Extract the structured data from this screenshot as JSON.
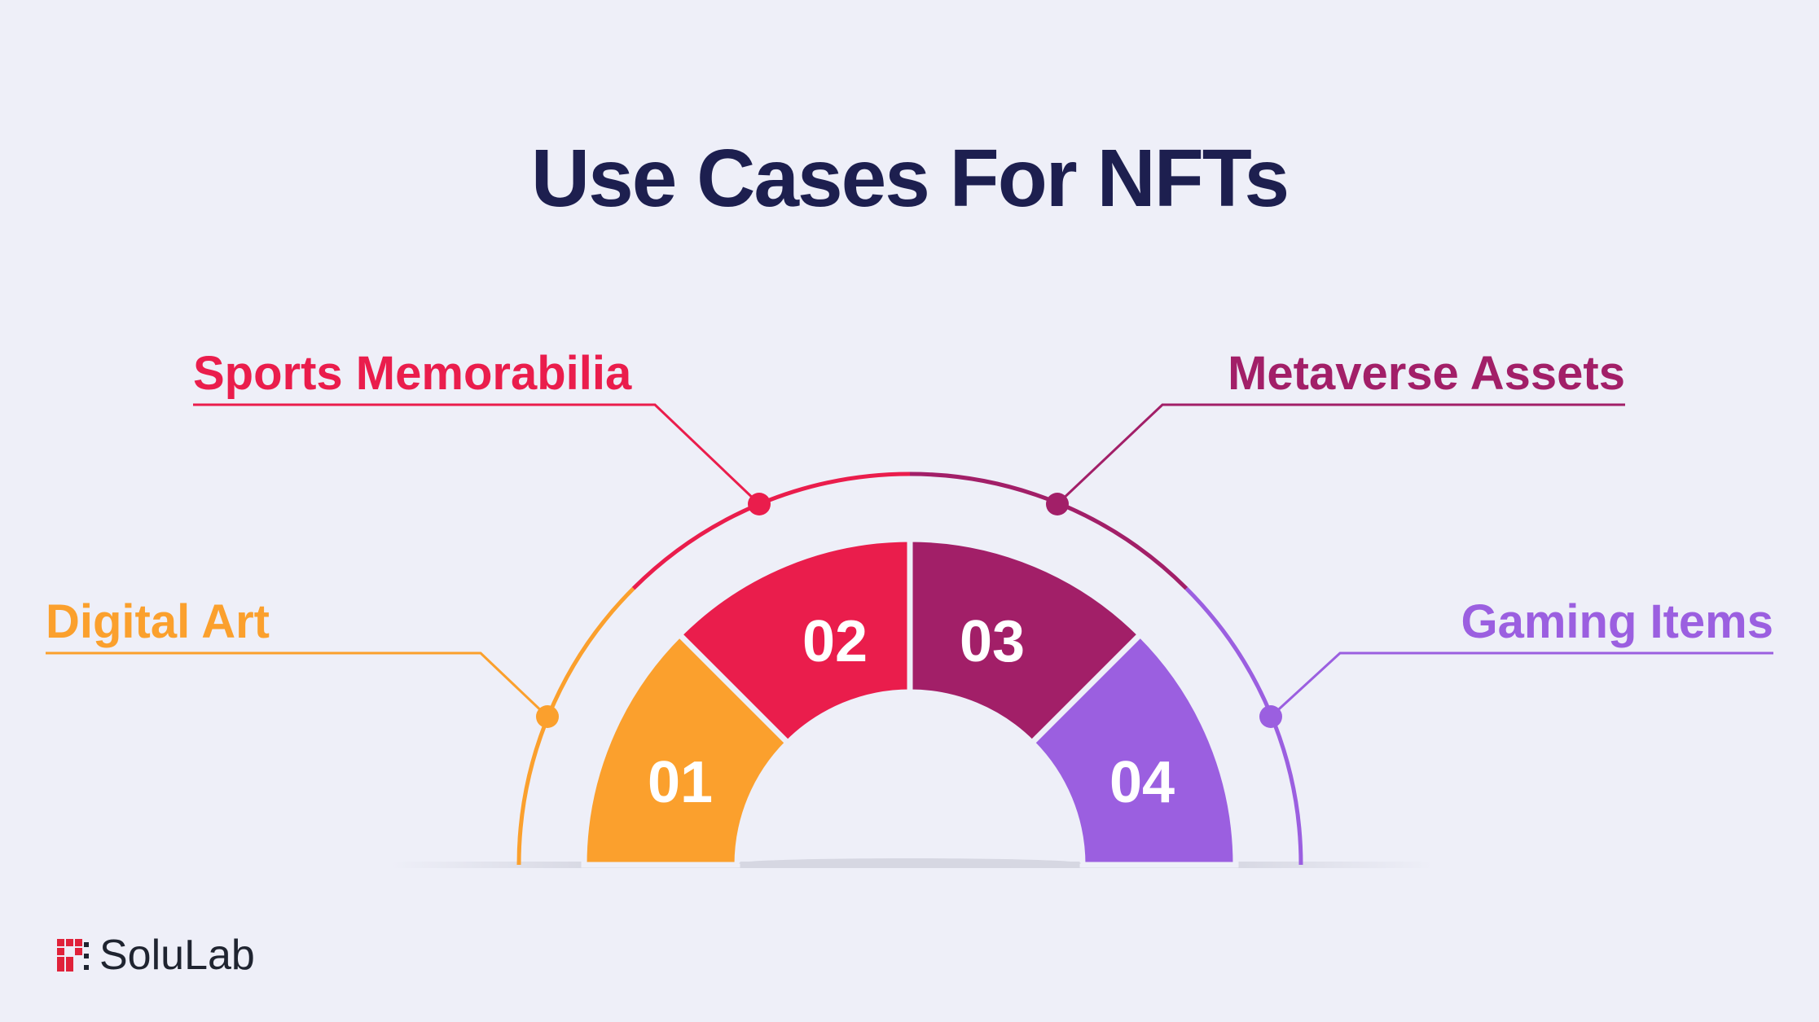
{
  "title": "Use Cases For NFTs",
  "segments": [
    {
      "number": "01",
      "label": "Digital Art",
      "color": "#fba02d"
    },
    {
      "number": "02",
      "label": "Sports Memorabilia",
      "color": "#ea1d4c"
    },
    {
      "number": "03",
      "label": "Metaverse Assets",
      "color": "#a21f68"
    },
    {
      "number": "04",
      "label": "Gaming Items",
      "color": "#9b5fe0"
    }
  ],
  "brand": {
    "name": "SoluLab",
    "logo_icon": "solulab-logo-icon"
  }
}
